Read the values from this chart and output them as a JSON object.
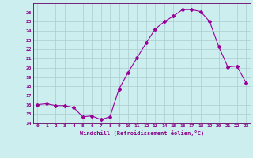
{
  "x_values": [
    0,
    1,
    2,
    3,
    4,
    5,
    6,
    7,
    8,
    9,
    10,
    11,
    12,
    13,
    14,
    15,
    16,
    17,
    18,
    19,
    20,
    21,
    22,
    23
  ],
  "y_values": [
    16.0,
    16.1,
    15.9,
    15.9,
    15.7,
    14.7,
    14.8,
    14.4,
    14.7,
    17.7,
    19.5,
    21.1,
    22.7,
    24.2,
    25.0,
    25.6,
    26.3,
    26.3,
    26.1,
    25.0,
    22.3,
    20.1,
    20.2,
    18.4
  ],
  "line_color": "#990099",
  "marker": "D",
  "markersize": 2,
  "bg_color": "#cceeee",
  "grid_color": "#aacccc",
  "xlabel": "Windchill (Refroidissement éolien,°C)",
  "xlim": [
    -0.5,
    23.5
  ],
  "ylim": [
    14,
    27
  ],
  "yticks": [
    14,
    15,
    16,
    17,
    18,
    19,
    20,
    21,
    22,
    23,
    24,
    25,
    26
  ],
  "xticks": [
    0,
    1,
    2,
    3,
    4,
    5,
    6,
    7,
    8,
    9,
    10,
    11,
    12,
    13,
    14,
    15,
    16,
    17,
    18,
    19,
    20,
    21,
    22,
    23
  ],
  "tick_color": "#990099",
  "label_color": "#880088",
  "spine_color": "#660066"
}
